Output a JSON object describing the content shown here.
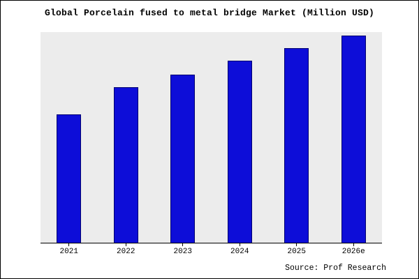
{
  "chart_data": {
    "type": "bar",
    "title": "Global Porcelain fused to metal bridge Market (Million USD)",
    "categories": [
      "2021",
      "2022",
      "2023",
      "2024",
      "2025",
      "2026e"
    ],
    "values": [
      62,
      75,
      81,
      88,
      94,
      100
    ],
    "ylim": [
      0,
      102
    ],
    "xlabel": "",
    "ylabel": "",
    "grid": false,
    "legend": "none",
    "bar_color": "#0d0dd8",
    "bar_edge_color": "#000070",
    "plot_bg": "#ececec",
    "source": "Source: Prof Research"
  }
}
